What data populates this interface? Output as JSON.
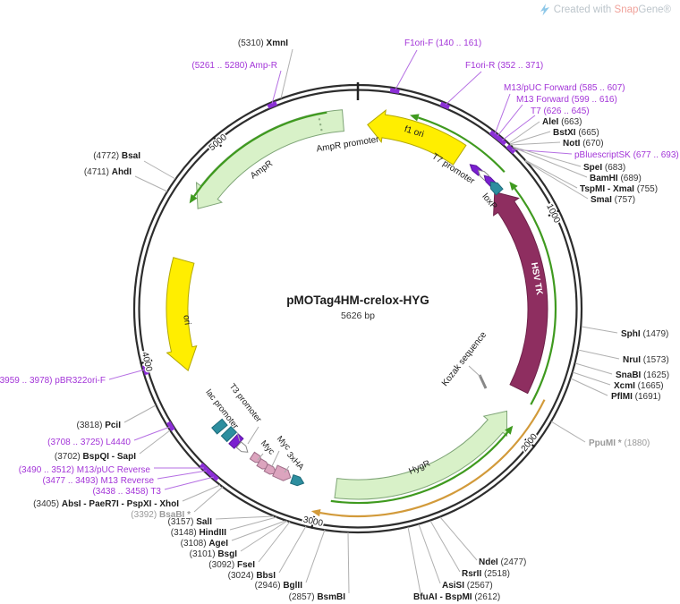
{
  "credit": {
    "prefix": "Created with ",
    "brand_snap": "Snap",
    "brand_gene": "Gene®"
  },
  "plasmid": {
    "name": "pMOTag4HM-crelox-HYG",
    "size_label": "5626 bp"
  },
  "scale": {
    "tick_labels": [
      "1000",
      "2000",
      "3000",
      "4000",
      "5000"
    ]
  },
  "features": [
    {
      "id": "ampr-promoter",
      "label": "AmpR promoter"
    },
    {
      "id": "f1-ori",
      "label": "f1 ori"
    },
    {
      "id": "t7-promoter",
      "label": "T7 promoter"
    },
    {
      "id": "loxp",
      "label": "loxP"
    },
    {
      "id": "hsv-tk",
      "label": "HSV TK"
    },
    {
      "id": "kozak-sequence",
      "label": "Kozak sequence"
    },
    {
      "id": "hygr",
      "label": "HygR"
    },
    {
      "id": "ori",
      "label": "ori"
    },
    {
      "id": "ampr",
      "label": "AmpR"
    },
    {
      "id": "lac-promoter",
      "label": "lac promoter"
    },
    {
      "id": "t3-promoter",
      "label": "T3 promoter"
    },
    {
      "id": "myc-tag-1",
      "label": "Myc"
    },
    {
      "id": "myc-tag-2",
      "label": "Myc"
    },
    {
      "id": "3xha-tag",
      "label": "3xHA"
    }
  ],
  "sites": [
    {
      "pre": "(5310) ",
      "name": "XmnI",
      "post": "",
      "kind": "enzyme"
    },
    {
      "pre": "(5261 .. 5280) ",
      "name": "Amp-R",
      "post": "",
      "kind": "primer"
    },
    {
      "pre": "",
      "name": "F1ori-F",
      "post": "  (140 .. 161)",
      "kind": "primer"
    },
    {
      "pre": "",
      "name": "F1ori-R",
      "post": "  (352 .. 371)",
      "kind": "primer"
    },
    {
      "pre": "",
      "name": "M13/pUC Forward",
      "post": "  (585 .. 607)",
      "kind": "primer"
    },
    {
      "pre": "",
      "name": "M13 Forward",
      "post": "  (599 .. 616)",
      "kind": "primer"
    },
    {
      "pre": "",
      "name": "T7",
      "post": "  (626 .. 645)",
      "kind": "primer"
    },
    {
      "pre": "",
      "name": "AleI",
      "post": "  (663)",
      "kind": "enzyme"
    },
    {
      "pre": "",
      "name": "BstXI",
      "post": "  (665)",
      "kind": "enzyme"
    },
    {
      "pre": "",
      "name": "NotI",
      "post": "  (670)",
      "kind": "enzyme"
    },
    {
      "pre": "",
      "name": "pBluescriptSK",
      "post": "  (677 .. 693)",
      "kind": "primer"
    },
    {
      "pre": "",
      "name": "SpeI",
      "post": "  (683)",
      "kind": "enzyme"
    },
    {
      "pre": "",
      "name": "BamHI",
      "post": "  (689)",
      "kind": "enzyme"
    },
    {
      "pre": "",
      "name": "TspMI - XmaI",
      "post": "  (755)",
      "kind": "enzyme"
    },
    {
      "pre": "",
      "name": "SmaI",
      "post": "  (757)",
      "kind": "enzyme"
    },
    {
      "pre": "",
      "name": "SphI",
      "post": "  (1479)",
      "kind": "enzyme"
    },
    {
      "pre": "",
      "name": "NruI",
      "post": "  (1573)",
      "kind": "enzyme"
    },
    {
      "pre": "",
      "name": "SnaBI",
      "post": "  (1625)",
      "kind": "enzyme"
    },
    {
      "pre": "",
      "name": "XcmI",
      "post": "  (1665)",
      "kind": "enzyme"
    },
    {
      "pre": "",
      "name": "PflMI",
      "post": "  (1691)",
      "kind": "enzyme"
    },
    {
      "pre": "",
      "name": "PpuMI *",
      "post": "  (1880)",
      "kind": "dim"
    },
    {
      "pre": "",
      "name": "NdeI",
      "post": "  (2477)",
      "kind": "enzyme"
    },
    {
      "pre": "",
      "name": "RsrII",
      "post": "  (2518)",
      "kind": "enzyme"
    },
    {
      "pre": "",
      "name": "AsiSI",
      "post": "  (2567)",
      "kind": "enzyme"
    },
    {
      "pre": "",
      "name": "BfuAI - BspMI",
      "post": "  (2612)",
      "kind": "enzyme"
    },
    {
      "pre": "(2857) ",
      "name": "BsmBI",
      "post": "",
      "kind": "enzyme"
    },
    {
      "pre": "(2946) ",
      "name": "BglII",
      "post": "",
      "kind": "enzyme"
    },
    {
      "pre": "(3024) ",
      "name": "BbsI",
      "post": "",
      "kind": "enzyme"
    },
    {
      "pre": "(3092) ",
      "name": "FseI",
      "post": "",
      "kind": "enzyme"
    },
    {
      "pre": "(3101) ",
      "name": "BsgI",
      "post": "",
      "kind": "enzyme"
    },
    {
      "pre": "(3108) ",
      "name": "AgeI",
      "post": "",
      "kind": "enzyme"
    },
    {
      "pre": "(3148) ",
      "name": "HindIII",
      "post": "",
      "kind": "enzyme"
    },
    {
      "pre": "(3157) ",
      "name": "SalI",
      "post": "",
      "kind": "enzyme"
    },
    {
      "pre": "(3392) ",
      "name": "BsaBI *",
      "post": "",
      "kind": "dim"
    },
    {
      "pre": "(3405) ",
      "name": "AbsI - PaeR7I - PspXI - XhoI",
      "post": "",
      "kind": "enzyme"
    },
    {
      "pre": "(3438 .. 3458) ",
      "name": "T3",
      "post": "",
      "kind": "primer"
    },
    {
      "pre": "(3477 .. 3493) ",
      "name": "M13 Reverse",
      "post": "",
      "kind": "primer"
    },
    {
      "pre": "(3490 .. 3512) ",
      "name": "M13/pUC Reverse",
      "post": "",
      "kind": "primer"
    },
    {
      "pre": "(3702) ",
      "name": "BspQI - SapI",
      "post": "",
      "kind": "enzyme"
    },
    {
      "pre": "(3708 .. 3725) ",
      "name": "L4440",
      "post": "",
      "kind": "primer"
    },
    {
      "pre": "(3818) ",
      "name": "PciI",
      "post": "",
      "kind": "enzyme"
    },
    {
      "pre": "(3959 .. 3978) ",
      "name": "pBR322ori-F",
      "post": "",
      "kind": "primer"
    },
    {
      "pre": "(4772) ",
      "name": "BsaI",
      "post": "",
      "kind": "enzyme"
    },
    {
      "pre": "(4711) ",
      "name": "AhdI",
      "post": "",
      "kind": "enzyme"
    }
  ],
  "colors": {
    "primer_text": "#a335d8",
    "primer_line": "#b56fe3",
    "primer_tick": "#8b2fd6",
    "enzyme_text": "#1c1c1c",
    "dim_text": "#9a9a9a",
    "gray_line": "#b0b0b0",
    "cds_green": "#d8f1c8",
    "cds_green_stroke": "#7fa577",
    "cds_maroon": "#8e2e60",
    "cds_maroon_stroke": "#6e2149",
    "origin_yellow": "#ffee00",
    "origin_yellow_stroke": "#b3a800",
    "orf_green": "#3f9a1f",
    "misc_orange": "#d29a3a",
    "site_teal": "#2d8e9f",
    "site_teal_stroke": "#1d6b7a",
    "tag_pink": "#dca4be",
    "tag_pink_stroke": "#9e6d88",
    "violet": "#7a1fd0",
    "violet_stroke": "#5a13a0",
    "ring": "#2d2d2d"
  }
}
